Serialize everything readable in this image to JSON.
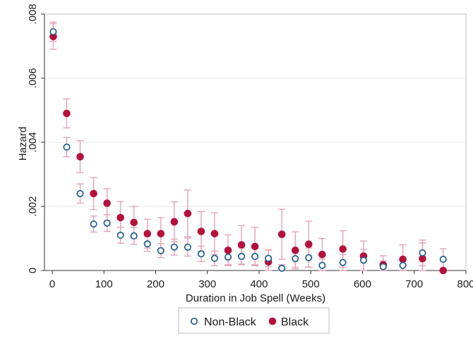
{
  "chart_data": {
    "type": "scatter",
    "xlabel": "Duration in Job Spell (Weeks)",
    "ylabel": "Hazard",
    "xlim": [
      -15,
      800
    ],
    "ylim": [
      0,
      0.008
    ],
    "xticks": [
      0,
      100,
      200,
      300,
      400,
      500,
      600,
      700,
      800
    ],
    "xtick_labels": [
      "0",
      "100",
      "200",
      "300",
      "400",
      "500",
      "600",
      "700",
      "800"
    ],
    "yticks": [
      0,
      0.002,
      0.004,
      0.006,
      0.008
    ],
    "ytick_labels": [
      "0",
      ".002",
      ".004",
      ".006",
      ".008"
    ],
    "grid": "horizontal",
    "legend_position": "bottom",
    "colors": {
      "nonblack": "#1f5f8b",
      "black": "#b5103c",
      "error_bar": "#e3a3b6",
      "grid": "#eaeaea",
      "plot_border": "#bdbdbd"
    },
    "series": [
      {
        "name": "Non-Black",
        "marker": "hollow-circle",
        "points": [
          {
            "x": 2,
            "y": 0.00745,
            "lo": 0.00715,
            "hi": 0.00775
          },
          {
            "x": 28,
            "y": 0.00385,
            "lo": 0.00355,
            "hi": 0.00415
          },
          {
            "x": 54,
            "y": 0.0024,
            "lo": 0.0021,
            "hi": 0.0027
          },
          {
            "x": 80,
            "y": 0.00145,
            "lo": 0.0012,
            "hi": 0.0017
          },
          {
            "x": 106,
            "y": 0.00148,
            "lo": 0.00122,
            "hi": 0.00174
          },
          {
            "x": 132,
            "y": 0.0011,
            "lo": 0.00085,
            "hi": 0.00135
          },
          {
            "x": 158,
            "y": 0.00108,
            "lo": 0.00082,
            "hi": 0.00134
          },
          {
            "x": 184,
            "y": 0.00083,
            "lo": 0.0006,
            "hi": 0.00106
          },
          {
            "x": 210,
            "y": 0.00062,
            "lo": 0.0004,
            "hi": 0.00084
          },
          {
            "x": 236,
            "y": 0.00073,
            "lo": 0.00048,
            "hi": 0.00098
          },
          {
            "x": 262,
            "y": 0.00073,
            "lo": 0.00045,
            "hi": 0.00101
          },
          {
            "x": 288,
            "y": 0.00052,
            "lo": 0.00028,
            "hi": 0.00076
          },
          {
            "x": 314,
            "y": 0.00038,
            "lo": 0.00015,
            "hi": 0.00061
          },
          {
            "x": 340,
            "y": 0.00042,
            "lo": 0.00018,
            "hi": 0.00066
          },
          {
            "x": 366,
            "y": 0.00044,
            "lo": 0.00018,
            "hi": 0.0007
          },
          {
            "x": 392,
            "y": 0.00044,
            "lo": 0.00018,
            "hi": 0.0007
          },
          {
            "x": 418,
            "y": 0.00038,
            "lo": 0.00012,
            "hi": 0.00064
          },
          {
            "x": 444,
            "y": 7e-05,
            "lo": 0.0,
            "hi": 0.00018
          },
          {
            "x": 470,
            "y": 0.00037,
            "lo": 0.0001,
            "hi": 0.00064
          },
          {
            "x": 496,
            "y": 0.0004,
            "lo": 0.0001,
            "hi": 0.0007
          },
          {
            "x": 522,
            "y": 0.00016,
            "lo": 0.0,
            "hi": 0.00036
          },
          {
            "x": 562,
            "y": 0.00025,
            "lo": 0.0,
            "hi": 0.0005
          },
          {
            "x": 602,
            "y": 0.00032,
            "lo": 0.0,
            "hi": 0.00066
          },
          {
            "x": 640,
            "y": 0.00012,
            "lo": 0.0,
            "hi": 0.0003
          },
          {
            "x": 678,
            "y": 0.00016,
            "lo": 0.0,
            "hi": 0.00038
          },
          {
            "x": 716,
            "y": 0.00055,
            "lo": 0.00015,
            "hi": 0.00095
          },
          {
            "x": 756,
            "y": 0.00035,
            "lo": 0.0,
            "hi": 0.00068
          }
        ]
      },
      {
        "name": "Black",
        "marker": "filled-circle",
        "points": [
          {
            "x": 2,
            "y": 0.0073,
            "lo": 0.0069,
            "hi": 0.0077
          },
          {
            "x": 28,
            "y": 0.0049,
            "lo": 0.00445,
            "hi": 0.00535
          },
          {
            "x": 54,
            "y": 0.00355,
            "lo": 0.00305,
            "hi": 0.00405
          },
          {
            "x": 80,
            "y": 0.0024,
            "lo": 0.0019,
            "hi": 0.0029
          },
          {
            "x": 106,
            "y": 0.0021,
            "lo": 0.00155,
            "hi": 0.00255
          },
          {
            "x": 132,
            "y": 0.00165,
            "lo": 0.00115,
            "hi": 0.00215
          },
          {
            "x": 158,
            "y": 0.0015,
            "lo": 0.001,
            "hi": 0.002
          },
          {
            "x": 184,
            "y": 0.00115,
            "lo": 0.0007,
            "hi": 0.0016
          },
          {
            "x": 210,
            "y": 0.00115,
            "lo": 0.00065,
            "hi": 0.00165
          },
          {
            "x": 236,
            "y": 0.00152,
            "lo": 0.0009,
            "hi": 0.00214
          },
          {
            "x": 262,
            "y": 0.00178,
            "lo": 0.00105,
            "hi": 0.00251
          },
          {
            "x": 288,
            "y": 0.00122,
            "lo": 0.0006,
            "hi": 0.00184
          },
          {
            "x": 314,
            "y": 0.00115,
            "lo": 0.0005,
            "hi": 0.0018
          },
          {
            "x": 340,
            "y": 0.00063,
            "lo": 0.00015,
            "hi": 0.00111
          },
          {
            "x": 366,
            "y": 0.0008,
            "lo": 0.0002,
            "hi": 0.0014
          },
          {
            "x": 392,
            "y": 0.00075,
            "lo": 0.00015,
            "hi": 0.00135
          },
          {
            "x": 418,
            "y": 0.00027,
            "lo": 0.0,
            "hi": 0.00065
          },
          {
            "x": 444,
            "y": 0.00113,
            "lo": 0.00035,
            "hi": 0.00191
          },
          {
            "x": 470,
            "y": 0.00063,
            "lo": 5e-05,
            "hi": 0.00121
          },
          {
            "x": 496,
            "y": 0.00082,
            "lo": 0.0001,
            "hi": 0.00154
          },
          {
            "x": 522,
            "y": 0.0005,
            "lo": 0.0,
            "hi": 0.001
          },
          {
            "x": 562,
            "y": 0.00067,
            "lo": 0.0001,
            "hi": 0.00124
          },
          {
            "x": 602,
            "y": 0.00045,
            "lo": 0.0,
            "hi": 0.00092
          },
          {
            "x": 640,
            "y": 0.00018,
            "lo": 0.0,
            "hi": 0.00046
          },
          {
            "x": 678,
            "y": 0.00035,
            "lo": 0.0,
            "hi": 0.0008
          },
          {
            "x": 716,
            "y": 0.00037,
            "lo": 0.0,
            "hi": 0.00086
          },
          {
            "x": 756,
            "y": 0.0,
            "lo": 0.0,
            "hi": 0.0
          }
        ]
      }
    ]
  }
}
